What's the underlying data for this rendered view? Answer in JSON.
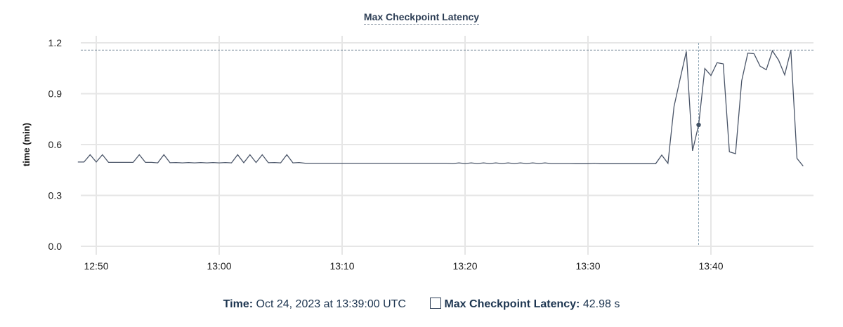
{
  "chart_data": {
    "type": "line",
    "title": "Max Checkpoint Latency",
    "xlabel": "",
    "ylabel": "time (min)",
    "ylim": [
      0,
      1.2
    ],
    "yticks": [
      "0.0",
      "0.3",
      "0.6",
      "0.9",
      "1.2"
    ],
    "xticks": [
      "12:50",
      "13:00",
      "13:10",
      "13:20",
      "13:30",
      "13:40"
    ],
    "xlim": [
      "12:48:20",
      "13:48:20"
    ],
    "grid": true,
    "line_color": "#4a5568",
    "max_reference_line": 1.157,
    "series": [
      {
        "x": [
          "12:48:30",
          "12:49:00",
          "12:49:30",
          "12:50:00",
          "12:50:30",
          "12:51:00",
          "12:51:30",
          "12:52:00",
          "12:52:30",
          "12:53:00",
          "12:53:30",
          "12:54:00",
          "12:54:30",
          "12:55:00",
          "12:55:30",
          "12:56:00",
          "12:56:30",
          "12:57:00",
          "12:57:30",
          "12:58:00",
          "12:58:30",
          "12:59:00",
          "12:59:30",
          "13:00:00",
          "13:00:30",
          "13:01:00",
          "13:01:30",
          "13:02:00",
          "13:02:30",
          "13:03:00",
          "13:03:30",
          "13:04:00",
          "13:04:30",
          "13:05:00",
          "13:05:30",
          "13:06:00",
          "13:06:30",
          "13:07:00",
          "13:07:30",
          "13:08:00",
          "13:08:30",
          "13:09:00",
          "13:09:30",
          "13:10:00",
          "13:10:30",
          "13:11:00",
          "13:11:30",
          "13:12:00",
          "13:12:30",
          "13:13:00",
          "13:13:30",
          "13:14:00",
          "13:14:30",
          "13:15:00",
          "13:15:30",
          "13:16:00",
          "13:16:30",
          "13:17:00",
          "13:17:30",
          "13:18:00",
          "13:18:30",
          "13:19:00",
          "13:19:30",
          "13:20:00",
          "13:20:30",
          "13:21:00",
          "13:21:30",
          "13:22:00",
          "13:22:30",
          "13:23:00",
          "13:23:30",
          "13:24:00",
          "13:24:30",
          "13:25:00",
          "13:25:30",
          "13:26:00",
          "13:26:30",
          "13:27:00",
          "13:27:30",
          "13:28:00",
          "13:28:30",
          "13:29:00",
          "13:29:30",
          "13:30:00",
          "13:30:30",
          "13:31:00",
          "13:31:30",
          "13:32:00",
          "13:32:30",
          "13:33:00",
          "13:33:30",
          "13:34:00",
          "13:34:30",
          "13:35:00",
          "13:35:30",
          "13:36:00",
          "13:36:30",
          "13:37:00",
          "13:37:30",
          "13:38:00",
          "13:38:30",
          "13:39:00",
          "13:39:30",
          "13:40:00",
          "13:40:30",
          "13:41:00",
          "13:41:30",
          "13:42:00",
          "13:42:30",
          "13:43:00",
          "13:43:30",
          "13:44:00",
          "13:44:30",
          "13:45:00",
          "13:45:30",
          "13:46:00",
          "13:46:30",
          "13:47:00",
          "13:47:30"
        ],
        "y": [
          0.497,
          0.497,
          0.54,
          0.497,
          0.54,
          0.495,
          0.495,
          0.495,
          0.495,
          0.495,
          0.54,
          0.495,
          0.495,
          0.492,
          0.54,
          0.493,
          0.494,
          0.492,
          0.494,
          0.492,
          0.494,
          0.492,
          0.494,
          0.492,
          0.494,
          0.492,
          0.54,
          0.493,
          0.54,
          0.494,
          0.54,
          0.493,
          0.494,
          0.492,
          0.54,
          0.492,
          0.494,
          0.49,
          0.49,
          0.49,
          0.49,
          0.49,
          0.49,
          0.49,
          0.49,
          0.49,
          0.49,
          0.49,
          0.49,
          0.49,
          0.49,
          0.49,
          0.49,
          0.49,
          0.49,
          0.49,
          0.49,
          0.49,
          0.49,
          0.49,
          0.49,
          0.488,
          0.492,
          0.488,
          0.492,
          0.488,
          0.492,
          0.488,
          0.492,
          0.488,
          0.492,
          0.488,
          0.492,
          0.488,
          0.492,
          0.488,
          0.492,
          0.488,
          0.488,
          0.488,
          0.488,
          0.487,
          0.487,
          0.487,
          0.49,
          0.487,
          0.487,
          0.487,
          0.487,
          0.487,
          0.487,
          0.487,
          0.487,
          0.487,
          0.487,
          0.538,
          0.489,
          0.825,
          0.99,
          1.149,
          0.563,
          0.716,
          1.048,
          1.007,
          1.083,
          1.076,
          0.557,
          0.546,
          0.976,
          1.139,
          1.136,
          1.062,
          1.041,
          1.153,
          1.098,
          1.011,
          1.157,
          0.518,
          0.473
        ]
      }
    ],
    "hover": {
      "x": "13:39:00",
      "y": 0.716
    }
  },
  "tooltip": {
    "time_label": "Time:",
    "time_value": "Oct 24, 2023 at 13:39:00 UTC",
    "series_label": "Max Checkpoint Latency:",
    "series_value": "42.98 s"
  }
}
